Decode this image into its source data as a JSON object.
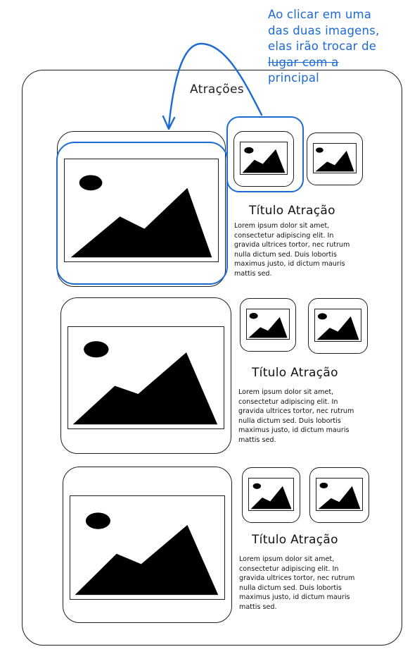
{
  "annotation": {
    "lines": [
      "Ao clicar em uma",
      "das duas imagens,",
      "elas irão trocar de",
      "lugar com a",
      "principal"
    ],
    "color": "#1c6bd4"
  },
  "section": {
    "title": "Atrações"
  },
  "attractions": [
    {
      "title": "Título Atração",
      "description": "Lorem ipsum dolor sit amet, consectetur adipiscing elit. In gravida ultrices tortor, nec rutrum nulla dictum sed. Duis lobortis maximus justo, id dictum mauris mattis sed.",
      "main_image_icon": "image-placeholder-icon",
      "thumbnails": [
        "image-placeholder-icon",
        "image-placeholder-icon"
      ]
    },
    {
      "title": "Título Atração",
      "description": "Lorem ipsum dolor sit amet, consectetur adipiscing elit. In gravida ultrices tortor, nec rutrum nulla dictum sed. Duis lobortis maximus justo, id dictum mauris mattis sed.",
      "main_image_icon": "image-placeholder-icon",
      "thumbnails": [
        "image-placeholder-icon",
        "image-placeholder-icon"
      ]
    },
    {
      "title": "Título Atração",
      "description": "Lorem ipsum dolor sit amet, consectetur adipiscing elit. In gravida ultrices tortor, nec rutrum nulla dictum sed. Duis lobortis maximus justo, id dictum mauris mattis sed.",
      "main_image_icon": "image-placeholder-icon",
      "thumbnails": [
        "image-placeholder-icon",
        "image-placeholder-icon"
      ]
    }
  ],
  "colors": {
    "annotation": "#1c6bd4",
    "ink": "#1f1f1f",
    "background": "#ffffff"
  }
}
